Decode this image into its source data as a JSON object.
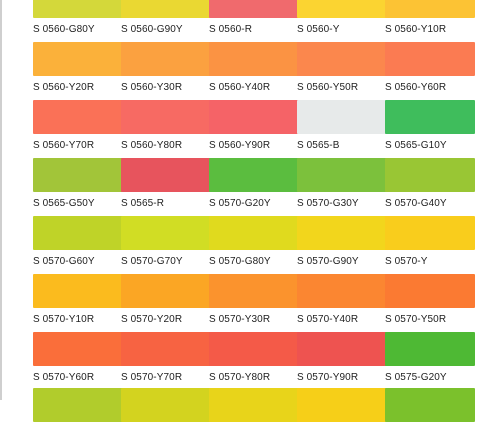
{
  "swatches": [
    {
      "label": "S  0560-G80Y",
      "color": "#d4d83a"
    },
    {
      "label": "S  0560-G90Y",
      "color": "#ead832"
    },
    {
      "label": "S  0560-R",
      "color": "#f06a6d"
    },
    {
      "label": "S  0560-Y",
      "color": "#fbd431"
    },
    {
      "label": "S  0560-Y10R",
      "color": "#fcc334"
    },
    {
      "label": "S  0560-Y20R",
      "color": "#fbb13a"
    },
    {
      "label": "S  0560-Y30R",
      "color": "#fba140"
    },
    {
      "label": "S  0560-Y40R",
      "color": "#fb9343"
    },
    {
      "label": "S  0560-Y50R",
      "color": "#fb874d"
    },
    {
      "label": "S  0560-Y60R",
      "color": "#fb7b52"
    },
    {
      "label": "S  0560-Y70R",
      "color": "#fa7157"
    },
    {
      "label": "S  0560-Y80R",
      "color": "#f76a63"
    },
    {
      "label": "S  0560-Y90R",
      "color": "#f56367"
    },
    {
      "label": "S  0565-B",
      "color": "#e7eaea"
    },
    {
      "label": "S  0565-G10Y",
      "color": "#3fbd5c"
    },
    {
      "label": "S  0565-G50Y",
      "color": "#a2c539"
    },
    {
      "label": "S  0565-R",
      "color": "#e7545d"
    },
    {
      "label": "S  0570-G20Y",
      "color": "#5bbd3f"
    },
    {
      "label": "S  0570-G30Y",
      "color": "#7cc13c"
    },
    {
      "label": "S  0570-G40Y",
      "color": "#99c634"
    },
    {
      "label": "S  0570-G60Y",
      "color": "#bfd328"
    },
    {
      "label": "S  0570-G70Y",
      "color": "#d1dd24"
    },
    {
      "label": "S  0570-G80Y",
      "color": "#e0da1e"
    },
    {
      "label": "S  0570-G90Y",
      "color": "#f2d61c"
    },
    {
      "label": "S  0570-Y",
      "color": "#f9cd1c"
    },
    {
      "label": "S  0570-Y10R",
      "color": "#fbbb1e"
    },
    {
      "label": "S  0570-Y20R",
      "color": "#fba624"
    },
    {
      "label": "S  0570-Y30R",
      "color": "#fb932d"
    },
    {
      "label": "S  0570-Y40R",
      "color": "#fb8631"
    },
    {
      "label": "S  0570-Y50R",
      "color": "#fb7a32"
    },
    {
      "label": "S  0570-Y60R",
      "color": "#fa6e3a"
    },
    {
      "label": "S  0570-Y70R",
      "color": "#f76342"
    },
    {
      "label": "S  0570-Y80R",
      "color": "#f45a48"
    },
    {
      "label": "S  0570-Y90R",
      "color": "#ee5350"
    },
    {
      "label": "S  0575-G20Y",
      "color": "#4eb934"
    },
    {
      "label": "",
      "color": "#b1cc2c"
    },
    {
      "label": "",
      "color": "#d3d31f"
    },
    {
      "label": "",
      "color": "#e8d41a"
    },
    {
      "label": "",
      "color": "#f6cf18"
    },
    {
      "label": "",
      "color": "#7bc12c"
    }
  ]
}
